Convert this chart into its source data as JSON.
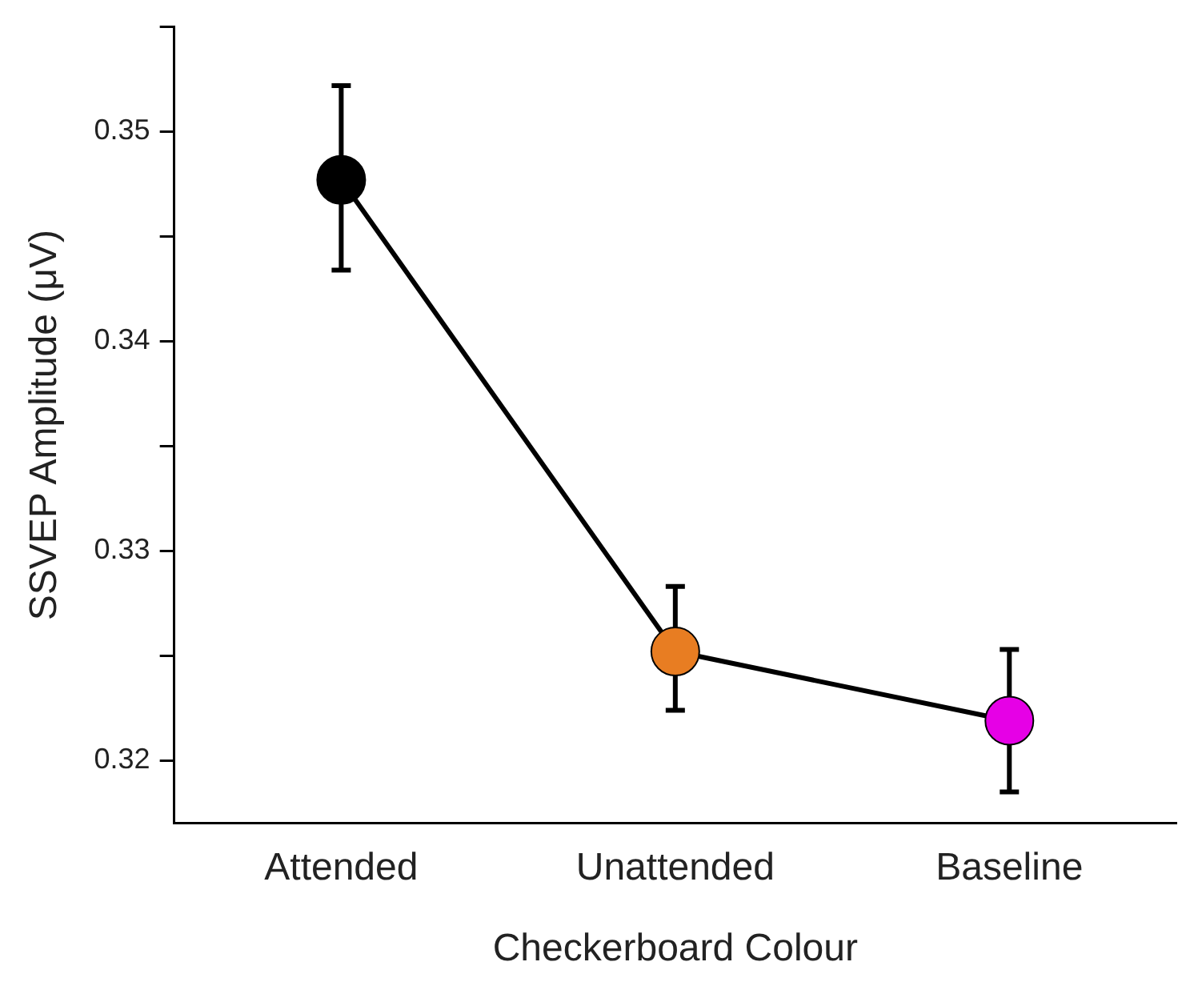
{
  "chart_data": {
    "type": "line",
    "xlabel": "Checkerboard Colour",
    "ylabel": "SSVEP Amplitude (μV)",
    "categories": [
      "Attended",
      "Unattended",
      "Baseline"
    ],
    "series": [
      {
        "color": "#000000",
        "colors": [
          "#000000",
          "#e87d22",
          "#e600e6"
        ],
        "values": [
          0.3477,
          0.3252,
          0.3219
        ],
        "errors": [
          [
            0.3434,
            0.3522
          ],
          [
            0.3224,
            0.3283
          ],
          [
            0.3185,
            0.3253
          ]
        ]
      }
    ],
    "ylim": [
      0.317,
      0.355
    ],
    "yticks": [
      0.32,
      {
        "value": 0.325,
        "label": null
      },
      0.33,
      {
        "value": 0.335,
        "label": null
      },
      0.34,
      {
        "value": 0.345,
        "label": null
      },
      0.35,
      {
        "value": 0.355,
        "label": null
      }
    ],
    "marker": "circle",
    "line_style": "solid",
    "legend": false,
    "grid": false
  }
}
